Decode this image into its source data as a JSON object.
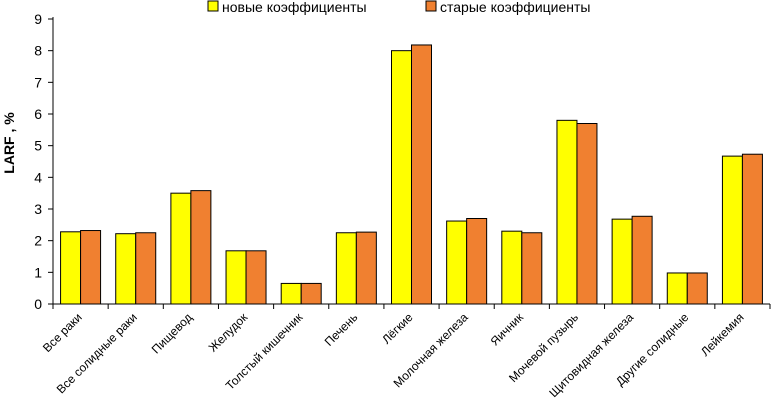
{
  "chart_data": {
    "type": "bar",
    "title": "",
    "xlabel": "",
    "ylabel": "LARF , %",
    "ylim": [
      0,
      9
    ],
    "yticks": [
      0,
      1,
      2,
      3,
      4,
      5,
      6,
      7,
      8,
      9
    ],
    "grid": false,
    "legend_position": "top-center",
    "categories": [
      "Все раки",
      "Все солидные раки",
      "Пищевод",
      "Желудок",
      "Толстый кишечник",
      "Печень",
      "Лёгкие",
      "Молочная железа",
      "Яичник",
      "Мочевой пузырь",
      "Щитовидная железа",
      "Другие солидные",
      "Лейкемия"
    ],
    "series": [
      {
        "name": "новые коэффициенты",
        "color": "#ffff00",
        "values": [
          2.28,
          2.22,
          3.5,
          1.68,
          0.65,
          2.25,
          8.0,
          2.62,
          2.3,
          5.8,
          2.68,
          0.98,
          4.67
        ]
      },
      {
        "name": "старые коэффициенты",
        "color": "#f08030",
        "values": [
          2.32,
          2.25,
          3.58,
          1.68,
          0.65,
          2.27,
          8.18,
          2.7,
          2.25,
          5.7,
          2.77,
          0.98,
          4.73
        ]
      }
    ]
  }
}
